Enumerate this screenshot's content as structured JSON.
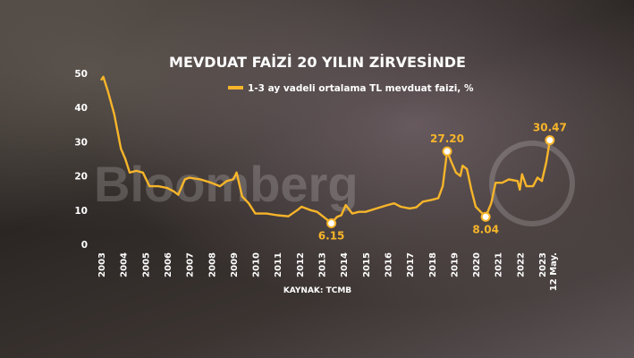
{
  "watermark": "Bloomberg HT",
  "chart_data": {
    "type": "line",
    "title": "MEVDUAT FAİZİ 20 YILIN ZİRVESİNDE",
    "legend": "1-3 ay vadeli ortalama TL mevduat faizi, %",
    "legend_placement": "top",
    "source": "KAYNAK: TCMB",
    "color": "#f7b52a",
    "xlabel": "",
    "ylabel": "",
    "ylim": [
      0,
      50
    ],
    "xlim": [
      2003,
      2023.4
    ],
    "yticks": [
      "0",
      "10",
      "20",
      "30",
      "40",
      "50"
    ],
    "xticks": [
      "2003",
      "2004",
      "2005",
      "2006",
      "2007",
      "2008",
      "2009",
      "2010",
      "2011",
      "2012",
      "2013",
      "2014",
      "2015",
      "2016",
      "2017",
      "2018",
      "2019",
      "2020",
      "2021",
      "2022",
      "2023"
    ],
    "last_tick_note": "12 May.",
    "grid": false,
    "x": [
      2003.0,
      2003.1,
      2003.3,
      2003.6,
      2003.9,
      2004.1,
      2004.3,
      2004.6,
      2004.9,
      2005.2,
      2005.6,
      2006.0,
      2006.3,
      2006.5,
      2006.8,
      2007.0,
      2007.5,
      2008.0,
      2008.4,
      2008.7,
      2009.0,
      2009.15,
      2009.4,
      2009.7,
      2010.0,
      2010.5,
      2011.0,
      2011.5,
      2011.9,
      2012.1,
      2012.5,
      2012.8,
      2013.2,
      2013.45,
      2013.7,
      2013.9,
      2014.1,
      2014.4,
      2014.7,
      2015.0,
      2015.5,
      2016.0,
      2016.3,
      2016.6,
      2017.0,
      2017.3,
      2017.6,
      2018.0,
      2018.3,
      2018.5,
      2018.7,
      2018.9,
      2019.1,
      2019.3,
      2019.4,
      2019.6,
      2019.8,
      2020.0,
      2020.3,
      2020.45,
      2020.7,
      2020.9,
      2021.2,
      2021.5,
      2021.9,
      2022.0,
      2022.1,
      2022.3,
      2022.6,
      2022.8,
      2023.0,
      2023.2,
      2023.36
    ],
    "values": [
      48,
      49,
      45,
      38,
      28,
      25,
      21,
      21.5,
      21,
      17,
      17,
      16.5,
      15.5,
      14.5,
      19,
      19.5,
      19,
      18,
      17,
      18.5,
      19,
      21,
      14,
      12,
      9,
      9,
      8.5,
      8.2,
      10,
      11,
      10,
      9.5,
      7.5,
      6.15,
      8,
      8.5,
      11.5,
      9,
      9.5,
      9.5,
      10.5,
      11.5,
      12,
      11,
      10.5,
      10.8,
      12.5,
      13,
      13.5,
      17,
      27.2,
      24,
      21,
      20,
      23,
      22,
      16,
      11,
      9,
      8.04,
      12,
      18,
      18,
      19,
      18.5,
      16,
      20.5,
      17,
      17,
      19.5,
      18.5,
      24,
      30.47
    ],
    "annotations": [
      {
        "x": 2013.45,
        "y": 6.15,
        "label": "6.15",
        "pos": "below"
      },
      {
        "x": 2018.7,
        "y": 27.2,
        "label": "27.20",
        "pos": "above"
      },
      {
        "x": 2020.45,
        "y": 8.04,
        "label": "8.04",
        "pos": "below"
      },
      {
        "x": 2023.36,
        "y": 30.47,
        "label": "30.47",
        "pos": "above"
      }
    ]
  }
}
